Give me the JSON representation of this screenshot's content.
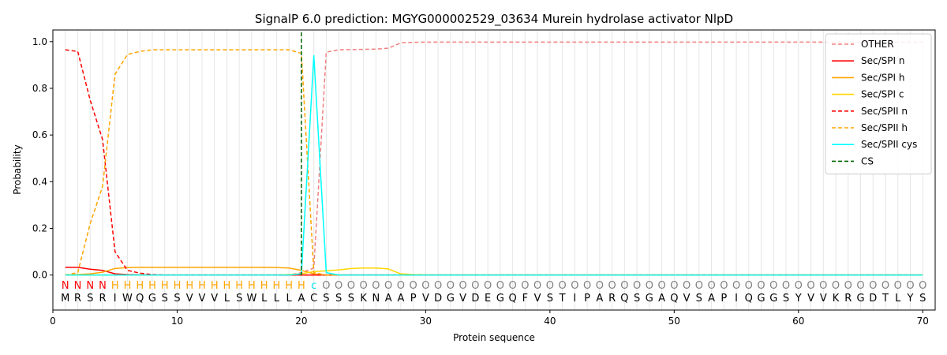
{
  "chart_data": {
    "type": "line",
    "title": "SignalP 6.0 prediction: MGYG000002529_03634 Murein hydrolase activator NlpD",
    "xlabel": "Protein sequence",
    "ylabel": "Probability",
    "xlim": [
      0,
      71
    ],
    "ylim": [
      -0.15,
      1.05
    ],
    "xticks": [
      0,
      10,
      20,
      30,
      40,
      50,
      60,
      70
    ],
    "yticks": [
      0.0,
      0.2,
      0.4,
      0.6,
      0.8,
      1.0
    ],
    "xtick_labels": [
      "0",
      "10",
      "20",
      "30",
      "40",
      "50",
      "60",
      "70"
    ],
    "ytick_labels": [
      "0.0",
      "0.2",
      "0.4",
      "0.6",
      "0.8",
      "1.0"
    ],
    "legend_position": "top-right",
    "sequence": [
      "M",
      "R",
      "S",
      "R",
      "I",
      "W",
      "Q",
      "G",
      "S",
      "S",
      "V",
      "V",
      "V",
      "L",
      "S",
      "W",
      "L",
      "L",
      "L",
      "A",
      "C",
      "S",
      "S",
      "S",
      "K",
      "N",
      "A",
      "A",
      "P",
      "V",
      "D",
      "G",
      "V",
      "D",
      "E",
      "G",
      "Q",
      "F",
      "V",
      "S",
      "T",
      "I",
      "P",
      "A",
      "R",
      "Q",
      "S",
      "G",
      "A",
      "Q",
      "V",
      "S",
      "A",
      "P",
      "I",
      "Q",
      "G",
      "G",
      "S",
      "Y",
      "V",
      "V",
      "K",
      "R",
      "G",
      "D",
      "T",
      "L",
      "Y",
      "S"
    ],
    "prediction": [
      "N",
      "N",
      "N",
      "N",
      "H",
      "H",
      "H",
      "H",
      "H",
      "H",
      "H",
      "H",
      "H",
      "H",
      "H",
      "H",
      "H",
      "H",
      "H",
      "H",
      "c",
      "O",
      "O",
      "O",
      "O",
      "O",
      "O",
      "O",
      "O",
      "O",
      "O",
      "O",
      "O",
      "O",
      "O",
      "O",
      "O",
      "O",
      "O",
      "O",
      "O",
      "O",
      "O",
      "O",
      "O",
      "O",
      "O",
      "O",
      "O",
      "O",
      "O",
      "O",
      "O",
      "O",
      "O",
      "O",
      "O",
      "O",
      "O",
      "O",
      "O",
      "O",
      "O",
      "O",
      "O",
      "O",
      "O",
      "O",
      "O",
      "O"
    ],
    "prediction_colors": {
      "N": "#ff0000",
      "H": "#ffa500",
      "c": "#00e5ee",
      "O": "#808080"
    },
    "cleavage_site": 20,
    "series": [
      {
        "name": "OTHER",
        "color": "#f08080",
        "dash": "dashed",
        "values": [
          0.0,
          0.0,
          0.0,
          0.0,
          0.0,
          0.0,
          0.0,
          0.0,
          0.0,
          0.0,
          0.0,
          0.0,
          0.0,
          0.0,
          0.0,
          0.0,
          0.0,
          0.0,
          0.0,
          0.01,
          0.03,
          0.955,
          0.965,
          0.966,
          0.967,
          0.968,
          0.972,
          0.995,
          0.997,
          0.998,
          0.998,
          0.998,
          0.998,
          0.998,
          0.998,
          0.998,
          0.998,
          0.998,
          0.998,
          0.998,
          0.998,
          0.998,
          0.998,
          0.998,
          0.998,
          0.998,
          0.998,
          0.998,
          0.998,
          0.998,
          0.998,
          0.998,
          0.998,
          0.998,
          0.998,
          0.998,
          0.998,
          0.998,
          0.998,
          0.998,
          0.998,
          0.998,
          0.998,
          0.998,
          0.998,
          0.998,
          0.998,
          0.998,
          0.998,
          0.998
        ]
      },
      {
        "name": "Sec/SPI n",
        "color": "#ff0000",
        "dash": "solid",
        "values": [
          0.033,
          0.033,
          0.025,
          0.02,
          0.005,
          0.002,
          0.001,
          0.0,
          0.0,
          0.0,
          0.0,
          0.0,
          0.0,
          0.0,
          0.0,
          0.0,
          0.0,
          0.0,
          0.0,
          0.0,
          0.0,
          0.0,
          0.0,
          0.0,
          0.0,
          0.0,
          0.0,
          0.0,
          0.0,
          0.0,
          0.0,
          0.0,
          0.0,
          0.0,
          0.0,
          0.0,
          0.0,
          0.0,
          0.0,
          0.0,
          0.0,
          0.0,
          0.0,
          0.0,
          0.0,
          0.0,
          0.0,
          0.0,
          0.0,
          0.0,
          0.0,
          0.0,
          0.0,
          0.0,
          0.0,
          0.0,
          0.0,
          0.0,
          0.0,
          0.0,
          0.0,
          0.0,
          0.0,
          0.0,
          0.0,
          0.0,
          0.0,
          0.0,
          0.0,
          0.0
        ]
      },
      {
        "name": "Sec/SPI h",
        "color": "#ffa500",
        "dash": "solid",
        "values": [
          0.0,
          0.002,
          0.005,
          0.012,
          0.028,
          0.032,
          0.033,
          0.033,
          0.033,
          0.033,
          0.033,
          0.033,
          0.033,
          0.033,
          0.033,
          0.033,
          0.033,
          0.032,
          0.03,
          0.02,
          0.005,
          0.0,
          0.0,
          0.0,
          0.0,
          0.0,
          0.0,
          0.0,
          0.0,
          0.0,
          0.0,
          0.0,
          0.0,
          0.0,
          0.0,
          0.0,
          0.0,
          0.0,
          0.0,
          0.0,
          0.0,
          0.0,
          0.0,
          0.0,
          0.0,
          0.0,
          0.0,
          0.0,
          0.0,
          0.0,
          0.0,
          0.0,
          0.0,
          0.0,
          0.0,
          0.0,
          0.0,
          0.0,
          0.0,
          0.0,
          0.0,
          0.0,
          0.0,
          0.0,
          0.0,
          0.0,
          0.0,
          0.0,
          0.0,
          0.0
        ]
      },
      {
        "name": "Sec/SPI c",
        "color": "#ffd700",
        "dash": "solid",
        "values": [
          0.0,
          0.0,
          0.0,
          0.0,
          0.0,
          0.0,
          0.0,
          0.0,
          0.0,
          0.0,
          0.0,
          0.0,
          0.0,
          0.0,
          0.0,
          0.0,
          0.0,
          0.0,
          0.002,
          0.005,
          0.015,
          0.018,
          0.022,
          0.028,
          0.03,
          0.03,
          0.026,
          0.005,
          0.002,
          0.001,
          0.0,
          0.0,
          0.0,
          0.0,
          0.0,
          0.0,
          0.0,
          0.0,
          0.0,
          0.0,
          0.0,
          0.0,
          0.0,
          0.0,
          0.0,
          0.0,
          0.0,
          0.0,
          0.0,
          0.0,
          0.0,
          0.0,
          0.0,
          0.0,
          0.0,
          0.0,
          0.0,
          0.0,
          0.0,
          0.0,
          0.0,
          0.0,
          0.0,
          0.0,
          0.0,
          0.0,
          0.0,
          0.0,
          0.0,
          0.0
        ]
      },
      {
        "name": "Sec/SPII n",
        "color": "#ff0000",
        "dash": "dashed",
        "values": [
          0.965,
          0.958,
          0.75,
          0.58,
          0.1,
          0.02,
          0.008,
          0.002,
          0.0,
          0.0,
          0.0,
          0.0,
          0.0,
          0.0,
          0.0,
          0.0,
          0.0,
          0.0,
          0.0,
          0.0,
          0.0,
          0.0,
          0.0,
          0.0,
          0.0,
          0.0,
          0.0,
          0.0,
          0.0,
          0.0,
          0.0,
          0.0,
          0.0,
          0.0,
          0.0,
          0.0,
          0.0,
          0.0,
          0.0,
          0.0,
          0.0,
          0.0,
          0.0,
          0.0,
          0.0,
          0.0,
          0.0,
          0.0,
          0.0,
          0.0,
          0.0,
          0.0,
          0.0,
          0.0,
          0.0,
          0.0,
          0.0,
          0.0,
          0.0,
          0.0,
          0.0,
          0.0,
          0.0,
          0.0,
          0.0,
          0.0,
          0.0,
          0.0,
          0.0,
          0.0
        ]
      },
      {
        "name": "Sec/SPII h",
        "color": "#ffa500",
        "dash": "dashed",
        "values": [
          0.0,
          0.01,
          0.22,
          0.38,
          0.86,
          0.945,
          0.958,
          0.965,
          0.965,
          0.965,
          0.965,
          0.965,
          0.965,
          0.965,
          0.965,
          0.965,
          0.965,
          0.965,
          0.965,
          0.95,
          0.01,
          0.0,
          0.0,
          0.0,
          0.0,
          0.0,
          0.0,
          0.0,
          0.0,
          0.0,
          0.0,
          0.0,
          0.0,
          0.0,
          0.0,
          0.0,
          0.0,
          0.0,
          0.0,
          0.0,
          0.0,
          0.0,
          0.0,
          0.0,
          0.0,
          0.0,
          0.0,
          0.0,
          0.0,
          0.0,
          0.0,
          0.0,
          0.0,
          0.0,
          0.0,
          0.0,
          0.0,
          0.0,
          0.0,
          0.0,
          0.0,
          0.0,
          0.0,
          0.0,
          0.0,
          0.0,
          0.0,
          0.0,
          0.0,
          0.0
        ]
      },
      {
        "name": "Sec/SPII cys",
        "color": "#00ffff",
        "dash": "solid",
        "values": [
          0.0,
          0.0,
          0.0,
          0.0,
          0.0,
          0.0,
          0.0,
          0.0,
          0.0,
          0.0,
          0.0,
          0.0,
          0.0,
          0.0,
          0.0,
          0.0,
          0.0,
          0.0,
          0.0,
          0.005,
          0.94,
          0.01,
          0.0,
          0.0,
          0.0,
          0.0,
          0.0,
          0.0,
          0.0,
          0.0,
          0.0,
          0.0,
          0.0,
          0.0,
          0.0,
          0.0,
          0.0,
          0.0,
          0.0,
          0.0,
          0.0,
          0.0,
          0.0,
          0.0,
          0.0,
          0.0,
          0.0,
          0.0,
          0.0,
          0.0,
          0.0,
          0.0,
          0.0,
          0.0,
          0.0,
          0.0,
          0.0,
          0.0,
          0.0,
          0.0,
          0.0,
          0.0,
          0.0,
          0.0,
          0.0,
          0.0,
          0.0,
          0.0,
          0.0,
          0.0
        ]
      }
    ],
    "cs_legend": {
      "name": "CS",
      "color": "#006400",
      "dash": "dashed"
    }
  }
}
